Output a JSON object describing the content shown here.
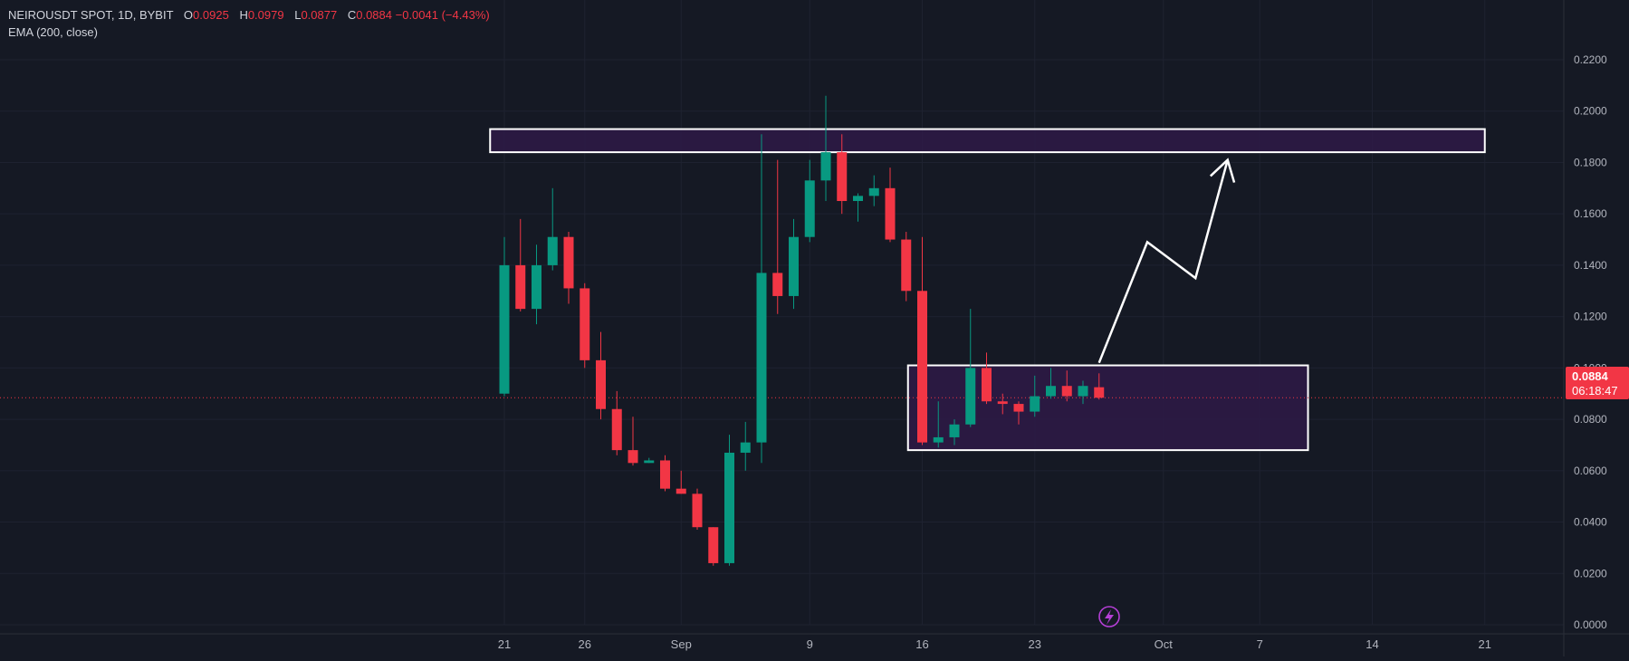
{
  "header": {
    "symbol_line": "NEIROUSDT SPOT, 1D, BYBIT",
    "ohlc": [
      {
        "key": "O",
        "value": "0.0925"
      },
      {
        "key": "H",
        "value": "0.0979"
      },
      {
        "key": "L",
        "value": "0.0877"
      },
      {
        "key": "C",
        "value": "0.0884"
      }
    ],
    "change": "−0.0041 (−4.43%)",
    "indicator": "EMA (200, close)"
  },
  "price_tag": {
    "price": "0.0884",
    "countdown": "06:18:47"
  },
  "colors": {
    "background": "#151924",
    "grid": "#1e2230",
    "up": "#089981",
    "down": "#f23645",
    "axis_text": "#b2b5be",
    "zone_fill": "#2e1a47",
    "annotation": "#ffffff",
    "flash_icon": "#b53fd6"
  },
  "icons": {
    "bottom_marker": "lightning-bolt-icon"
  },
  "chart_data": {
    "type": "candlestick",
    "interval": "1D",
    "ylim": [
      0,
      0.22
    ],
    "y_ticks": [
      "0.0000",
      "0.0200",
      "0.0400",
      "0.0600",
      "0.0800",
      "0.1000",
      "0.1200",
      "0.1400",
      "0.1600",
      "0.1800",
      "0.2000",
      "0.2200"
    ],
    "x_ticks": [
      "21",
      "26",
      "Sep",
      "9",
      "16",
      "23",
      "Oct",
      "7",
      "14",
      "21"
    ],
    "grid": true,
    "last_price_line": 0.0884,
    "candles": [
      {
        "date": "2024-08-21",
        "o": 0.09,
        "h": 0.151,
        "l": 0.089,
        "c": 0.14
      },
      {
        "date": "2024-08-22",
        "o": 0.14,
        "h": 0.158,
        "l": 0.122,
        "c": 0.123
      },
      {
        "date": "2024-08-23",
        "o": 0.123,
        "h": 0.148,
        "l": 0.117,
        "c": 0.14
      },
      {
        "date": "2024-08-24",
        "o": 0.14,
        "h": 0.17,
        "l": 0.138,
        "c": 0.151
      },
      {
        "date": "2024-08-25",
        "o": 0.151,
        "h": 0.153,
        "l": 0.125,
        "c": 0.131
      },
      {
        "date": "2024-08-26",
        "o": 0.131,
        "h": 0.133,
        "l": 0.1,
        "c": 0.103
      },
      {
        "date": "2024-08-27",
        "o": 0.103,
        "h": 0.114,
        "l": 0.08,
        "c": 0.084
      },
      {
        "date": "2024-08-28",
        "o": 0.084,
        "h": 0.091,
        "l": 0.066,
        "c": 0.068
      },
      {
        "date": "2024-08-29",
        "o": 0.068,
        "h": 0.081,
        "l": 0.062,
        "c": 0.063
      },
      {
        "date": "2024-08-30",
        "o": 0.063,
        "h": 0.065,
        "l": 0.063,
        "c": 0.064
      },
      {
        "date": "2024-08-31",
        "o": 0.064,
        "h": 0.066,
        "l": 0.052,
        "c": 0.053
      },
      {
        "date": "2024-09-01",
        "o": 0.053,
        "h": 0.06,
        "l": 0.051,
        "c": 0.051
      },
      {
        "date": "2024-09-02",
        "o": 0.051,
        "h": 0.053,
        "l": 0.037,
        "c": 0.038
      },
      {
        "date": "2024-09-03",
        "o": 0.038,
        "h": 0.038,
        "l": 0.023,
        "c": 0.024
      },
      {
        "date": "2024-09-04",
        "o": 0.024,
        "h": 0.074,
        "l": 0.023,
        "c": 0.067
      },
      {
        "date": "2024-09-05",
        "o": 0.067,
        "h": 0.079,
        "l": 0.06,
        "c": 0.071
      },
      {
        "date": "2024-09-06",
        "o": 0.071,
        "h": 0.191,
        "l": 0.063,
        "c": 0.137
      },
      {
        "date": "2024-09-07",
        "o": 0.137,
        "h": 0.181,
        "l": 0.121,
        "c": 0.128
      },
      {
        "date": "2024-09-08",
        "o": 0.128,
        "h": 0.158,
        "l": 0.123,
        "c": 0.151
      },
      {
        "date": "2024-09-09",
        "o": 0.151,
        "h": 0.181,
        "l": 0.149,
        "c": 0.173
      },
      {
        "date": "2024-09-10",
        "o": 0.173,
        "h": 0.206,
        "l": 0.165,
        "c": 0.184
      },
      {
        "date": "2024-09-11",
        "o": 0.184,
        "h": 0.191,
        "l": 0.16,
        "c": 0.165
      },
      {
        "date": "2024-09-12",
        "o": 0.165,
        "h": 0.168,
        "l": 0.157,
        "c": 0.167
      },
      {
        "date": "2024-09-13",
        "o": 0.167,
        "h": 0.175,
        "l": 0.163,
        "c": 0.17
      },
      {
        "date": "2024-09-14",
        "o": 0.17,
        "h": 0.178,
        "l": 0.149,
        "c": 0.15
      },
      {
        "date": "2024-09-15",
        "o": 0.15,
        "h": 0.153,
        "l": 0.126,
        "c": 0.13
      },
      {
        "date": "2024-09-16",
        "o": 0.13,
        "h": 0.151,
        "l": 0.07,
        "c": 0.071
      },
      {
        "date": "2024-09-17",
        "o": 0.071,
        "h": 0.087,
        "l": 0.069,
        "c": 0.073
      },
      {
        "date": "2024-09-18",
        "o": 0.073,
        "h": 0.08,
        "l": 0.07,
        "c": 0.078
      },
      {
        "date": "2024-09-19",
        "o": 0.078,
        "h": 0.123,
        "l": 0.077,
        "c": 0.1
      },
      {
        "date": "2024-09-20",
        "o": 0.1,
        "h": 0.106,
        "l": 0.086,
        "c": 0.087
      },
      {
        "date": "2024-09-21",
        "o": 0.087,
        "h": 0.09,
        "l": 0.082,
        "c": 0.086
      },
      {
        "date": "2024-09-22",
        "o": 0.086,
        "h": 0.087,
        "l": 0.078,
        "c": 0.083
      },
      {
        "date": "2024-09-23",
        "o": 0.083,
        "h": 0.097,
        "l": 0.081,
        "c": 0.089
      },
      {
        "date": "2024-09-24",
        "o": 0.089,
        "h": 0.1,
        "l": 0.088,
        "c": 0.093
      },
      {
        "date": "2024-09-25",
        "o": 0.093,
        "h": 0.099,
        "l": 0.087,
        "c": 0.089
      },
      {
        "date": "2024-09-26",
        "o": 0.089,
        "h": 0.095,
        "l": 0.086,
        "c": 0.093
      },
      {
        "date": "2024-09-27",
        "o": 0.0925,
        "h": 0.0979,
        "l": 0.0877,
        "c": 0.0884
      }
    ],
    "annotations": {
      "resistance_zone": {
        "from_date": "2024-08-20",
        "to_date": "2024-10-21",
        "top": 0.193,
        "bottom": 0.184
      },
      "support_zone": {
        "from_date": "2024-09-15",
        "to_date": "2024-10-10",
        "top": 0.101,
        "bottom": 0.068
      },
      "projection_path": [
        {
          "date": "2024-09-27",
          "price": 0.102
        },
        {
          "date": "2024-09-30",
          "price": 0.149
        },
        {
          "date": "2024-10-03",
          "price": 0.135
        },
        {
          "date": "2024-10-05",
          "price": 0.181
        }
      ]
    }
  }
}
